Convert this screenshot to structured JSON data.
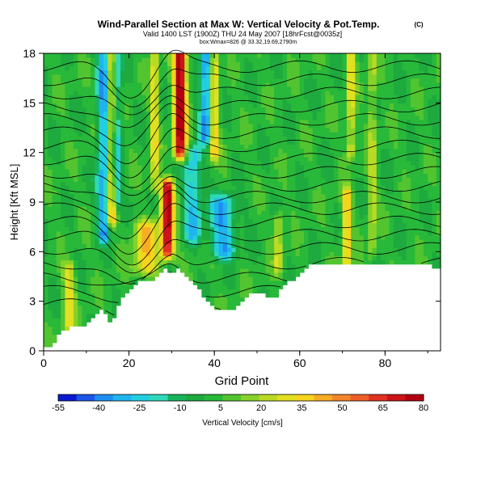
{
  "header": {
    "title": "Wind-Parallel Section at Max W: Vertical Velocity & Pot.Temp.",
    "title_mark": "(C)",
    "subtitle": "Valid 1400 LST (1900Z) THU 24 May 2007 [18hrFcst@0035z]",
    "subtitle2": "box:Wmax=826 @ 33.32,19.69,2790m"
  },
  "chart_data": {
    "type": "heatmap",
    "xlabel": "Grid Point",
    "ylabel": "Height [Kft MSL]",
    "xlim": [
      0,
      93
    ],
    "ylim": [
      0,
      18
    ],
    "x_ticks": [
      0,
      20,
      40,
      60,
      80
    ],
    "y_ticks": [
      0,
      3,
      6,
      9,
      12,
      15,
      18
    ],
    "colorbar": {
      "label": "Vertical Velocity [cm/s]",
      "min": -55,
      "max": 80,
      "tick_values": [
        -55,
        -40,
        -25,
        -10,
        5,
        20,
        35,
        50,
        65,
        80
      ],
      "colors": [
        "#0a1ad0",
        "#1d55e8",
        "#1e8df0",
        "#1fb4ee",
        "#22cfe0",
        "#2fd8b8",
        "#18b35c",
        "#1eaa3e",
        "#28b83a",
        "#52c430",
        "#86d22a",
        "#bada24",
        "#e2e020",
        "#f6d31c",
        "#f6ad24",
        "#f2862a",
        "#ec5e26",
        "#e03222",
        "#cc1418",
        "#b00010"
      ]
    },
    "terrain_top_kft": [
      [
        0,
        0.3
      ],
      [
        2,
        0.4
      ],
      [
        4,
        1.2
      ],
      [
        8,
        1.5
      ],
      [
        10,
        1.5
      ],
      [
        14,
        2.6
      ],
      [
        16,
        1.6
      ],
      [
        18,
        3.2
      ],
      [
        20,
        3.6
      ],
      [
        22,
        4.2
      ],
      [
        26,
        4.2
      ],
      [
        28,
        5.0
      ],
      [
        30,
        4.6
      ],
      [
        32,
        5.0
      ],
      [
        34,
        4.5
      ],
      [
        36,
        3.8
      ],
      [
        38,
        3.2
      ],
      [
        40,
        2.5
      ],
      [
        44,
        2.4
      ],
      [
        46,
        2.8
      ],
      [
        48,
        3.5
      ],
      [
        50,
        3.6
      ],
      [
        54,
        3.2
      ],
      [
        56,
        3.8
      ],
      [
        58,
        4.3
      ],
      [
        60,
        4.6
      ],
      [
        62,
        5.2
      ],
      [
        70,
        5.2
      ],
      [
        72,
        5.3
      ],
      [
        80,
        5.3
      ],
      [
        86,
        5.3
      ],
      [
        90,
        5.2
      ],
      [
        93,
        5.0
      ]
    ],
    "velocity_features": [
      {
        "x": 14,
        "z0": 7,
        "z1": 18,
        "w": -35,
        "width": 1.5
      },
      {
        "x": 16,
        "z0": 8,
        "z1": 18,
        "w": 45,
        "width": 1.0
      },
      {
        "x": 17,
        "z0": 9,
        "z1": 18,
        "w": -30,
        "width": 1.2
      },
      {
        "x": 24,
        "z0": 5,
        "z1": 7.5,
        "w": 35,
        "width": 3.0
      },
      {
        "x": 26,
        "z0": 10,
        "z1": 18,
        "w": 30,
        "width": 1.0
      },
      {
        "x": 29,
        "z0": 6,
        "z1": 10,
        "w": 75,
        "width": 1.5
      },
      {
        "x": 32,
        "z0": 12,
        "z1": 18,
        "w": 80,
        "width": 1.5
      },
      {
        "x": 35,
        "z0": 7,
        "z1": 12,
        "w": -30,
        "width": 2.0
      },
      {
        "x": 38,
        "z0": 13,
        "z1": 18,
        "w": -40,
        "width": 1.5
      },
      {
        "x": 40,
        "z0": 12,
        "z1": 18,
        "w": 40,
        "width": 1.0
      },
      {
        "x": 42,
        "z0": 6,
        "z1": 9,
        "w": -35,
        "width": 3.0
      },
      {
        "x": 55,
        "z0": 5,
        "z1": 8,
        "w": 25,
        "width": 1.0
      },
      {
        "x": 71,
        "z0": 5.5,
        "z1": 9.5,
        "w": 40,
        "width": 1.0
      },
      {
        "x": 72,
        "z0": 12,
        "z1": 18,
        "w": 30,
        "width": 1.0
      },
      {
        "x": 77,
        "z0": 6,
        "z1": 18,
        "w": 20,
        "width": 1.0
      },
      {
        "x": 6,
        "z0": 0.5,
        "z1": 5,
        "w": 25,
        "width": 1.5
      }
    ],
    "isentropes": [
      {
        "base_kft": 2.8
      },
      {
        "base_kft": 3.6
      },
      {
        "base_kft": 4.4
      },
      {
        "base_kft": 5.3
      },
      {
        "base_kft": 6.2
      },
      {
        "base_kft": 7.0
      },
      {
        "base_kft": 7.8
      },
      {
        "base_kft": 8.6
      },
      {
        "base_kft": 9.3
      },
      {
        "base_kft": 10.0
      },
      {
        "base_kft": 10.8
      },
      {
        "base_kft": 11.6
      },
      {
        "base_kft": 12.4
      },
      {
        "base_kft": 13.2
      },
      {
        "base_kft": 14.0
      },
      {
        "base_kft": 14.8
      },
      {
        "base_kft": 15.6
      },
      {
        "base_kft": 16.4
      },
      {
        "base_kft": 17.2
      }
    ]
  }
}
